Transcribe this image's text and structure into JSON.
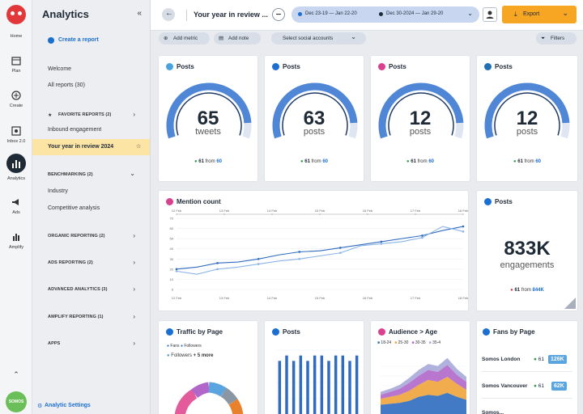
{
  "rail": {
    "items": [
      {
        "name": "rail-home",
        "label": "Home"
      },
      {
        "name": "rail-plan",
        "label": "Plan"
      },
      {
        "name": "rail-create",
        "label": "Create"
      },
      {
        "name": "rail-inbox",
        "label": "Inbox 2.0"
      },
      {
        "name": "rail-analytics",
        "label": "Analytics"
      },
      {
        "name": "rail-ads",
        "label": "Ads"
      },
      {
        "name": "rail-amplify",
        "label": "Amplify"
      }
    ],
    "avatar_label": "SOMOS"
  },
  "sidebar": {
    "title": "Analytics",
    "create_report": "Create a report",
    "welcome": "Welcome",
    "all_reports": "All reports (30)",
    "favorite": "FAVORITE REPORTS (2)",
    "inbound": "Inbound engagement",
    "selected": "Your year in review 2024",
    "benchmarking": "BENCHMARKING (2)",
    "industry": "Industry",
    "competitive": "Competitive analysis",
    "organic": "ORGANIC REPORTING (2)",
    "ads": "ADS REPORTING (2)",
    "advanced": "ADVANCED ANALYTICS (3)",
    "amplify": "AMPLIFY REPORTING (1)",
    "apps": "APPS",
    "settings": "Analytic Settings"
  },
  "topbar": {
    "report_title": "Your year in review ...",
    "range1": "Dec 23-19 — Jan 22-20",
    "range2": "Dec 30-2024 — Jan 29-20",
    "export": "Export"
  },
  "toolbar": {
    "add_metric": "Add metric",
    "add_note": "Add note",
    "select_accounts": "Select social accounts",
    "filters": "Filters"
  },
  "colors": {
    "blue": "#1b6fd0",
    "gauge": "#4f86d6",
    "orange": "#f6a623",
    "green": "#2e9b46",
    "pink": "#d9418f"
  },
  "gauges": [
    {
      "network": "twitter",
      "title": "Posts",
      "value": "65",
      "unit": "tweets",
      "delta": "61",
      "from": "from",
      "base": "60",
      "fraction": 0.9
    },
    {
      "network": "facebook",
      "title": "Posts",
      "value": "63",
      "unit": "posts",
      "delta": "61",
      "from": "from",
      "base": "60",
      "fraction": 0.9
    },
    {
      "network": "instagram",
      "title": "Posts",
      "value": "12",
      "unit": "posts",
      "delta": "61",
      "from": "from",
      "base": "60",
      "fraction": 0.9
    },
    {
      "network": "linkedin",
      "title": "Posts",
      "value": "12",
      "unit": "posts",
      "delta": "61",
      "from": "from",
      "base": "60",
      "fraction": 0.9
    }
  ],
  "mention": {
    "title": "Mention count",
    "chart_data": {
      "type": "line",
      "ylim": [
        0,
        70
      ],
      "y_ticks": [
        "0",
        "10",
        "20",
        "30",
        "40",
        "50",
        "60",
        "70"
      ],
      "x_ticks_top": [
        "12 Feb",
        "13 Feb",
        "14 Feb",
        "15 Feb",
        "16 Feb",
        "17 Feb",
        "18 Feb"
      ],
      "x_ticks_bottom": [
        "12 Feb",
        "13 Feb",
        "14 Feb",
        "15 Feb",
        "16 Feb",
        "17 Feb",
        "18 Feb"
      ],
      "series": [
        {
          "values": [
            20,
            22,
            26,
            27,
            30,
            34,
            37,
            38,
            41,
            44,
            47,
            50,
            53,
            58,
            62
          ]
        },
        {
          "values": [
            18,
            15,
            20,
            22,
            25,
            28,
            30,
            33,
            36,
            43,
            45,
            47,
            51,
            62,
            57
          ]
        }
      ]
    }
  },
  "engagements": {
    "title": "Posts",
    "value": "833K",
    "unit": "engagements",
    "delta": "61",
    "from": "from",
    "base": "844K"
  },
  "traffic": {
    "title": "Traffic by Page",
    "fans": "Fans",
    "followers": "Followers",
    "followers2": "Followers",
    "more": "+ 5 more"
  },
  "posts_bar": {
    "title": "Posts",
    "chart_data": {
      "type": "bar",
      "values": [
        10,
        11,
        10,
        11,
        10,
        11,
        11,
        10,
        11,
        11,
        10,
        11
      ],
      "ylim": [
        0,
        12
      ]
    }
  },
  "audience": {
    "title": "Audience > Age",
    "legend": [
      "18-24",
      "25-30",
      "30-35",
      "35-4"
    ],
    "chart_data": {
      "type": "area",
      "series": [
        {
          "name": "18-24",
          "values": [
            10,
            11,
            12,
            14,
            18,
            20,
            19,
            22,
            18,
            15
          ]
        },
        {
          "name": "25-30",
          "values": [
            6,
            7,
            8,
            10,
            12,
            15,
            14,
            16,
            13,
            10
          ]
        },
        {
          "name": "30-35",
          "values": [
            4,
            5,
            6,
            8,
            9,
            10,
            10,
            12,
            9,
            8
          ]
        },
        {
          "name": "35-4",
          "values": [
            3,
            3,
            4,
            5,
            6,
            6,
            6,
            7,
            6,
            5
          ]
        }
      ]
    }
  },
  "fans": {
    "title": "Fans by Page",
    "rows": [
      {
        "name": "Somos London",
        "delta": "61",
        "value": "126K"
      },
      {
        "name": "Somos Vancouver",
        "delta": "61",
        "value": "62K"
      },
      {
        "name": "Somos...",
        "delta": "",
        "value": ""
      }
    ]
  }
}
